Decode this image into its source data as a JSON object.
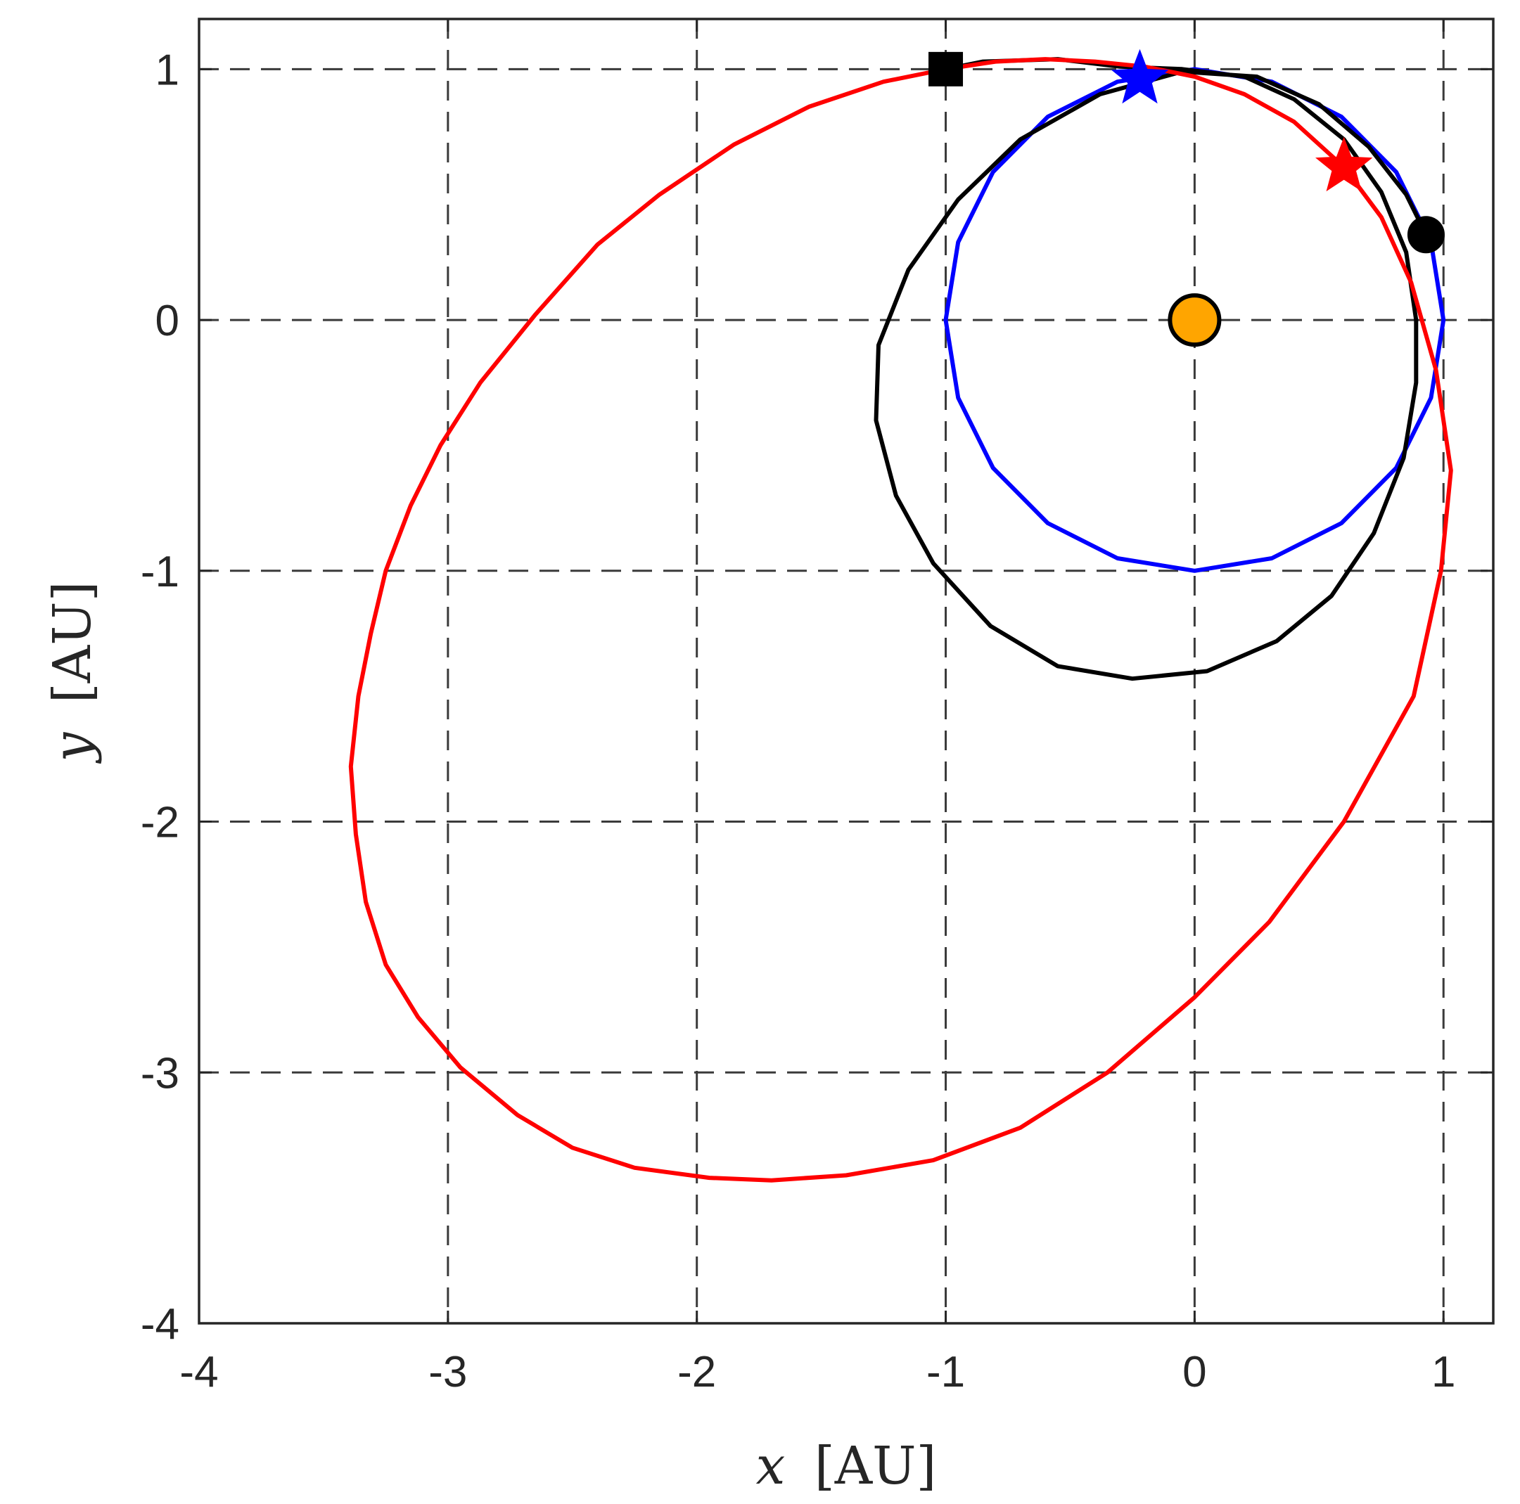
{
  "chart_data": {
    "type": "line",
    "title": "",
    "xlabel": {
      "var": "x",
      "unit": "[AU]"
    },
    "ylabel": {
      "var": "y",
      "unit": "[AU]"
    },
    "xlim": [
      -4,
      1.2
    ],
    "ylim": [
      -4,
      1.2
    ],
    "xticks": [
      -4,
      -3,
      -2,
      -1,
      0,
      1
    ],
    "yticks": [
      -4,
      -3,
      -2,
      -1,
      0,
      1
    ],
    "xtick_labels": [
      "-4",
      "-3",
      "-2",
      "-1",
      "0",
      "1"
    ],
    "ytick_labels": [
      "-4",
      "-3",
      "-2",
      "-1",
      "0",
      "1"
    ],
    "grid": true,
    "grid_style": "dashed",
    "legend": "none",
    "series": [
      {
        "color": "#0000ff",
        "points": [
          [
            1.0,
            0.0
          ],
          [
            0.95,
            0.31
          ],
          [
            0.81,
            0.59
          ],
          [
            0.59,
            0.81
          ],
          [
            0.31,
            0.95
          ],
          [
            0.0,
            1.0
          ],
          [
            -0.31,
            0.95
          ],
          [
            -0.59,
            0.81
          ],
          [
            -0.81,
            0.59
          ],
          [
            -0.95,
            0.31
          ],
          [
            -1.0,
            0.0
          ],
          [
            -0.95,
            -0.31
          ],
          [
            -0.81,
            -0.59
          ],
          [
            -0.59,
            -0.81
          ],
          [
            -0.31,
            -0.95
          ],
          [
            0.0,
            -1.0
          ],
          [
            0.31,
            -0.95
          ],
          [
            0.59,
            -0.81
          ],
          [
            0.81,
            -0.59
          ],
          [
            0.95,
            -0.31
          ],
          [
            1.0,
            0.0
          ]
        ]
      },
      {
        "color": "#000000",
        "points": [
          [
            -1.0,
            1.0
          ],
          [
            -0.85,
            1.03
          ],
          [
            -0.55,
            1.04
          ],
          [
            -0.3,
            1.01
          ],
          [
            -0.05,
            1.0
          ],
          [
            0.2,
            0.97
          ],
          [
            0.4,
            0.88
          ],
          [
            0.6,
            0.72
          ],
          [
            0.75,
            0.51
          ],
          [
            0.85,
            0.27
          ],
          [
            0.89,
            0.0
          ],
          [
            0.89,
            -0.25
          ],
          [
            0.84,
            -0.55
          ],
          [
            0.72,
            -0.85
          ],
          [
            0.55,
            -1.1
          ],
          [
            0.33,
            -1.28
          ],
          [
            0.05,
            -1.4
          ],
          [
            -0.25,
            -1.43
          ],
          [
            -0.55,
            -1.38
          ],
          [
            -0.82,
            -1.22
          ],
          [
            -1.05,
            -0.97
          ],
          [
            -1.2,
            -0.7
          ],
          [
            -1.28,
            -0.4
          ],
          [
            -1.27,
            -0.1
          ],
          [
            -1.15,
            0.2
          ],
          [
            -0.95,
            0.48
          ],
          [
            -0.7,
            0.72
          ],
          [
            -0.38,
            0.9
          ],
          [
            -0.05,
            0.99
          ],
          [
            0.25,
            0.97
          ],
          [
            0.5,
            0.86
          ],
          [
            0.7,
            0.69
          ],
          [
            0.85,
            0.5
          ],
          [
            0.93,
            0.34
          ]
        ]
      },
      {
        "color": "#ff0000",
        "points": [
          [
            -1.0,
            1.0
          ],
          [
            -0.8,
            1.03
          ],
          [
            -0.6,
            1.04
          ],
          [
            -0.4,
            1.03
          ],
          [
            -0.2,
            1.01
          ],
          [
            0.0,
            0.97
          ],
          [
            0.2,
            0.9
          ],
          [
            0.4,
            0.79
          ],
          [
            0.6,
            0.61
          ],
          [
            0.75,
            0.41
          ],
          [
            0.87,
            0.15
          ],
          [
            0.97,
            -0.2
          ],
          [
            1.03,
            -0.6
          ],
          [
            0.99,
            -1.0
          ],
          [
            0.88,
            -1.5
          ],
          [
            0.6,
            -2.0
          ],
          [
            0.3,
            -2.4
          ],
          [
            0.0,
            -2.7
          ],
          [
            -0.35,
            -3.0
          ],
          [
            -0.7,
            -3.22
          ],
          [
            -1.05,
            -3.35
          ],
          [
            -1.4,
            -3.41
          ],
          [
            -1.7,
            -3.43
          ],
          [
            -1.95,
            -3.42
          ],
          [
            -2.25,
            -3.38
          ],
          [
            -2.5,
            -3.3
          ],
          [
            -2.72,
            -3.17
          ],
          [
            -2.95,
            -2.98
          ],
          [
            -3.12,
            -2.78
          ],
          [
            -3.25,
            -2.57
          ],
          [
            -3.33,
            -2.32
          ],
          [
            -3.37,
            -2.05
          ],
          [
            -3.39,
            -1.78
          ],
          [
            -3.36,
            -1.5
          ],
          [
            -3.31,
            -1.25
          ],
          [
            -3.25,
            -1.0
          ],
          [
            -3.15,
            -0.74
          ],
          [
            -3.03,
            -0.5
          ],
          [
            -2.87,
            -0.25
          ],
          [
            -2.65,
            0.02
          ],
          [
            -2.4,
            0.3
          ],
          [
            -2.15,
            0.5
          ],
          [
            -1.85,
            0.7
          ],
          [
            -1.55,
            0.85
          ],
          [
            -1.25,
            0.95
          ],
          [
            -1.0,
            1.0
          ]
        ]
      }
    ],
    "markers": [
      {
        "shape": "square",
        "x": -1.0,
        "y": 1.0,
        "fill": "#000000",
        "edge": "#000000"
      },
      {
        "shape": "star",
        "x": -0.22,
        "y": 0.96,
        "fill": "#0000ff",
        "edge": "#0000ff"
      },
      {
        "shape": "star",
        "x": 0.6,
        "y": 0.61,
        "fill": "#ff0000",
        "edge": "#ff0000"
      },
      {
        "shape": "circle",
        "x": 0.93,
        "y": 0.34,
        "fill": "#000000",
        "edge": "#000000"
      },
      {
        "shape": "circle",
        "x": 0.0,
        "y": 0.0,
        "fill": "#ffa500",
        "edge": "#000000"
      }
    ]
  }
}
